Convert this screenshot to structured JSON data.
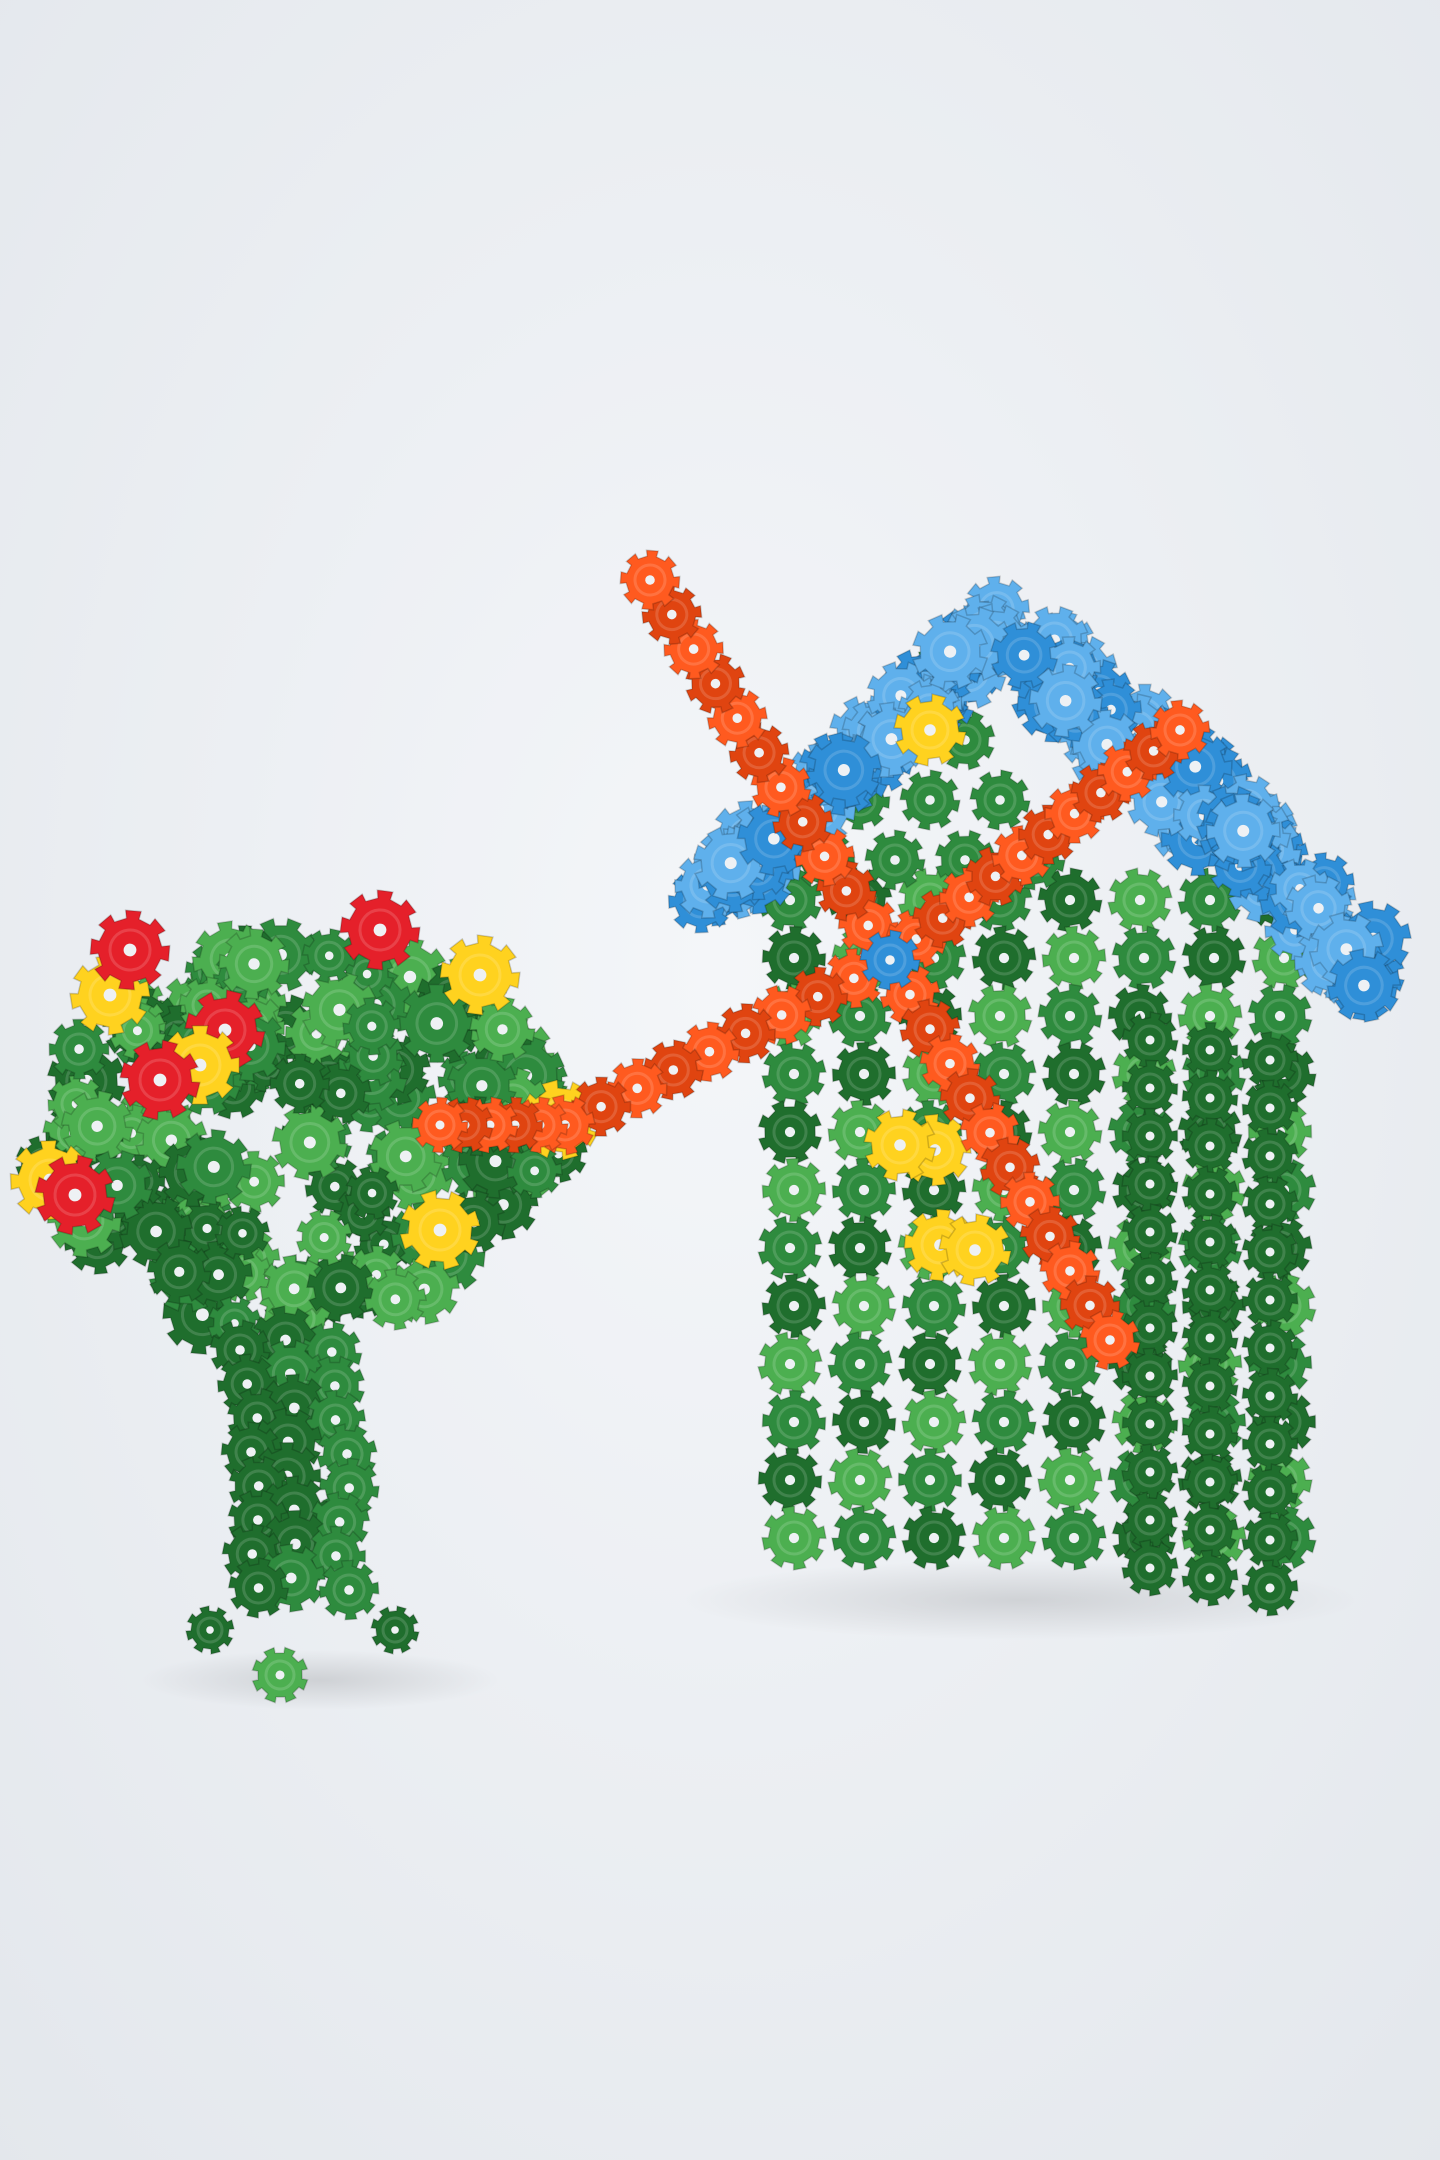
{
  "photo": {
    "subject": "",
    "background_color": "#eceff3",
    "piece_colors": {
      "green": "#2e8b3e",
      "green_dark": "#1f6e2d",
      "green_light": "#4caf50",
      "blue": "#2f8fd8",
      "blue_light": "#5fb0ec",
      "orange": "#ff5a1f",
      "orange_dark": "#e04410",
      "yellow": "#ffd21f",
      "red": "#e5202a"
    }
  }
}
